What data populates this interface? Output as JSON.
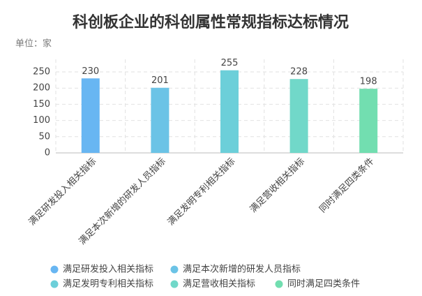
{
  "chart_data": {
    "type": "bar",
    "title": "科创板企业的科创属性常规指标达标情况",
    "unit": "单位：家",
    "categories": [
      "满足研发投入相关指标",
      "满足本次新增的研发人员指标",
      "满足发明专利相关指标",
      "满足营收相关指标",
      "同时满足四类条件"
    ],
    "values": [
      230,
      201,
      255,
      228,
      198
    ],
    "colors": [
      "#68b6f2",
      "#6bc3e6",
      "#6ccfd9",
      "#71d8c9",
      "#72deb0"
    ],
    "ylim": [
      0,
      250
    ],
    "yticks": [
      0,
      50,
      100,
      150,
      200,
      250
    ],
    "grid": true
  }
}
